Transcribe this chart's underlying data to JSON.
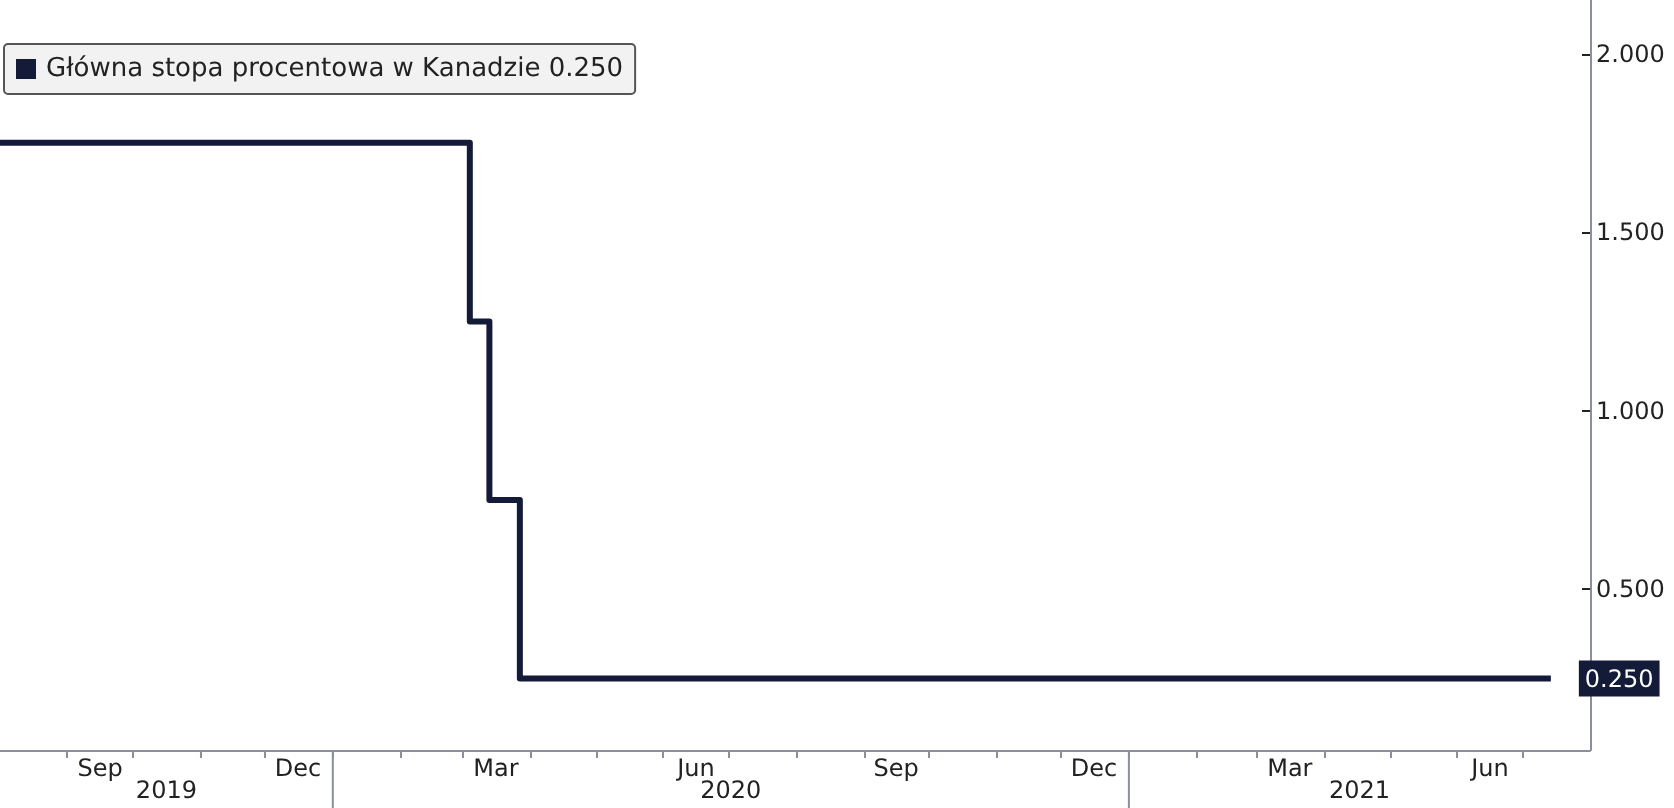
{
  "chart_data": {
    "type": "step",
    "x": [
      "2019-08-01",
      "2020-03-04",
      "2020-03-13",
      "2020-03-27",
      "2021-07-14"
    ],
    "series": [
      {
        "name": "Główna stopa procentowa w Kanadzie 0.250",
        "color": "#141b38",
        "values": [
          1.75,
          1.25,
          0.75,
          0.25,
          0.25
        ],
        "value_labels": [
          null,
          null,
          null,
          null,
          "0.250"
        ]
      }
    ],
    "xlim": [
      "2019-08-01",
      "2021-08-01"
    ],
    "xticks": [
      {
        "value": "2019-09-01",
        "label": null
      },
      {
        "value": "2019-10-01",
        "label": null
      },
      {
        "value": "2019-11-01",
        "label": null
      },
      {
        "value": "2019-12-01",
        "label": null
      },
      {
        "value": "2020-01-01",
        "label": null
      },
      {
        "value": "2020-02-01",
        "label": null
      },
      {
        "value": "2020-03-01",
        "label": null
      },
      {
        "value": "2020-04-01",
        "label": null
      },
      {
        "value": "2020-05-01",
        "label": null
      },
      {
        "value": "2020-06-01",
        "label": null
      },
      {
        "value": "2020-07-01",
        "label": null
      },
      {
        "value": "2020-08-01",
        "label": null
      },
      {
        "value": "2020-09-01",
        "label": null
      },
      {
        "value": "2020-10-01",
        "label": null
      },
      {
        "value": "2020-11-01",
        "label": null
      },
      {
        "value": "2020-12-01",
        "label": null
      },
      {
        "value": "2021-01-01",
        "label": null
      },
      {
        "value": "2021-02-01",
        "label": null
      },
      {
        "value": "2021-03-01",
        "label": null
      },
      {
        "value": "2021-04-01",
        "label": null
      },
      {
        "value": "2021-05-01",
        "label": null
      },
      {
        "value": "2021-06-01",
        "label": null
      },
      {
        "value": "2021-07-01",
        "label": null
      },
      {
        "value": "2019-09-16",
        "label": "Sep"
      },
      {
        "value": "2019-12-16",
        "label": "Dec"
      },
      {
        "value": "2020-03-16",
        "label": "Mar"
      },
      {
        "value": "2020-06-16",
        "label": "Jun"
      },
      {
        "value": "2020-09-16",
        "label": "Sep"
      },
      {
        "value": "2020-12-16",
        "label": "Dec"
      },
      {
        "value": "2021-03-16",
        "label": "Mar"
      },
      {
        "value": "2021-06-16",
        "label": "Jun"
      }
    ],
    "ylim": [
      0.05,
      2.15
    ],
    "yticks": [
      {
        "value": 0.5,
        "label": "0.500"
      },
      {
        "value": 1,
        "label": "1.000"
      },
      {
        "value": 1.5,
        "label": "1.500"
      },
      {
        "value": 2,
        "label": "2.000"
      }
    ],
    "annotations": [
      "2019",
      "2020",
      "2021"
    ],
    "grid": false,
    "legend": "top left",
    "marker": "none",
    "line_style": "solid"
  }
}
